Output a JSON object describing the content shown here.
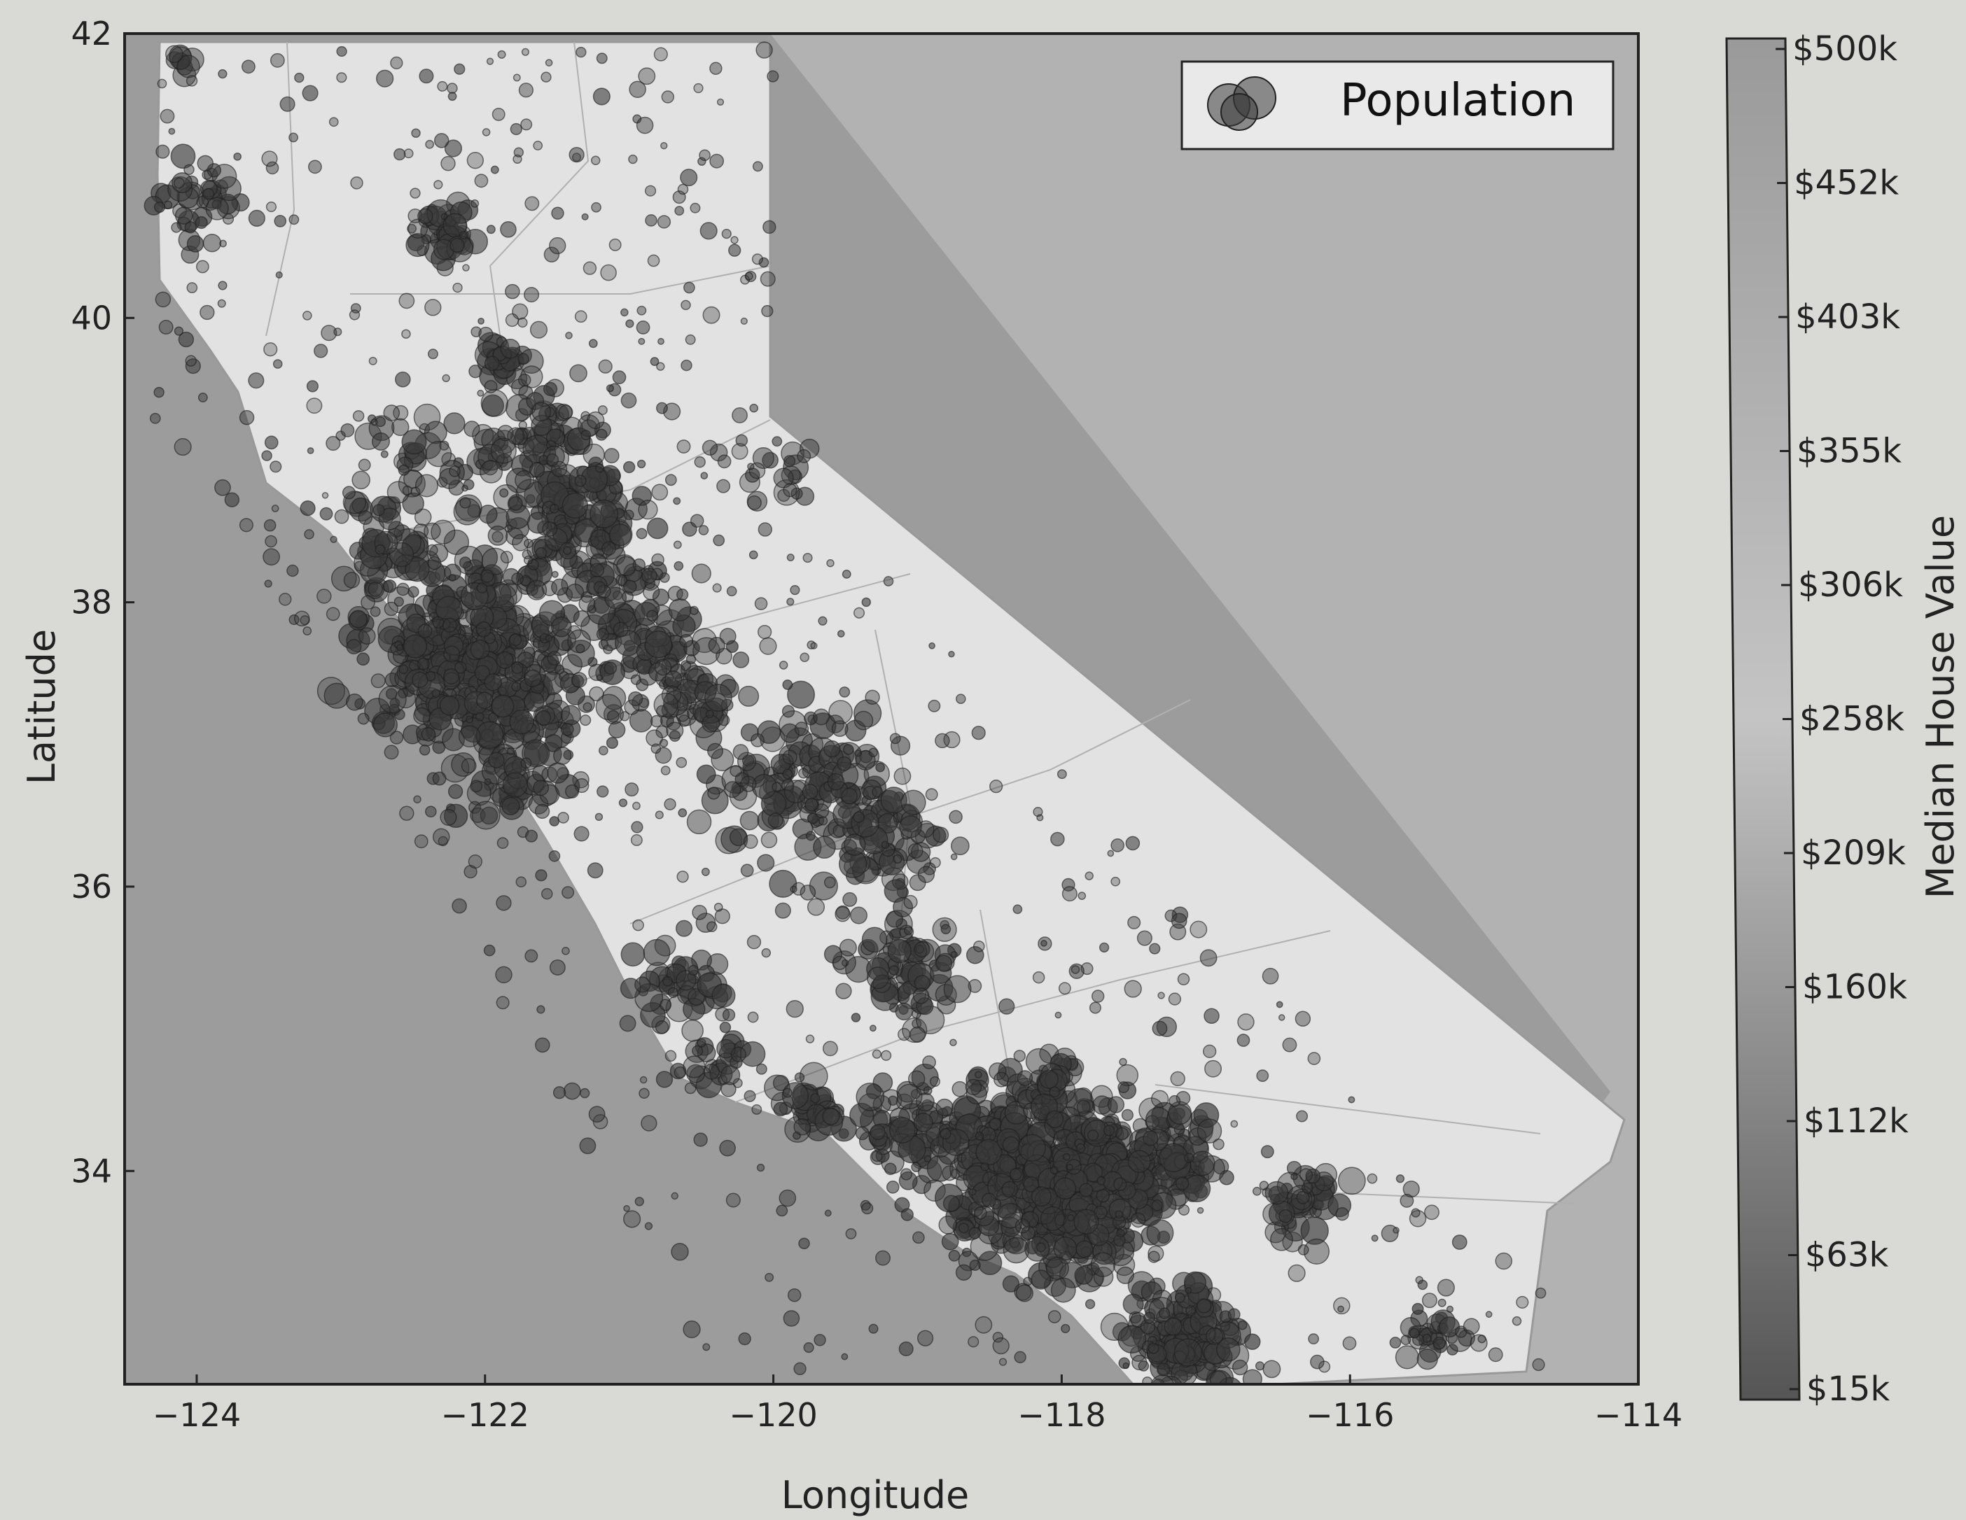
{
  "chart_data": {
    "type": "scatter",
    "xlabel": "Longitude",
    "ylabel": "Latitude",
    "xlim": [
      -124.5,
      -114
    ],
    "ylim": [
      32.5,
      42
    ],
    "x_ticks": [
      "−124",
      "−122",
      "−120",
      "−118",
      "−116",
      "−114"
    ],
    "x_tick_values": [
      -124,
      -122,
      -120,
      -118,
      -116,
      -114
    ],
    "y_ticks": [
      "34",
      "36",
      "38",
      "40",
      "42"
    ],
    "y_tick_values": [
      34,
      36,
      38,
      40,
      42
    ],
    "legend": {
      "label": "Population",
      "placement": "top-right"
    },
    "colorbar": {
      "label": "Median House Value",
      "ticks": [
        "$500k",
        "$452k",
        "$403k",
        "$355k",
        "$306k",
        "$258k",
        "$209k",
        "$160k",
        "$112k",
        "$63k",
        "$15k"
      ],
      "range": [
        15,
        500
      ]
    },
    "grid": false,
    "clusters": [
      {
        "lon": -124.1,
        "lat": 41.8,
        "spread": 0.05,
        "n": 10
      },
      {
        "lon": -124.0,
        "lat": 40.8,
        "spread": 0.15,
        "n": 40
      },
      {
        "lon": -122.3,
        "lat": 40.6,
        "spread": 0.12,
        "n": 45
      },
      {
        "lon": -121.85,
        "lat": 39.7,
        "spread": 0.1,
        "n": 30
      },
      {
        "lon": -121.55,
        "lat": 39.15,
        "spread": 0.22,
        "n": 80
      },
      {
        "lon": -121.4,
        "lat": 38.6,
        "spread": 0.25,
        "n": 160
      },
      {
        "lon": -122.2,
        "lat": 37.75,
        "spread": 0.35,
        "n": 320
      },
      {
        "lon": -121.9,
        "lat": 37.3,
        "spread": 0.3,
        "n": 200
      },
      {
        "lon": -121.8,
        "lat": 36.7,
        "spread": 0.18,
        "n": 50
      },
      {
        "lon": -122.65,
        "lat": 38.45,
        "spread": 0.15,
        "n": 45
      },
      {
        "lon": -121.0,
        "lat": 37.75,
        "spread": 0.25,
        "n": 120
      },
      {
        "lon": -120.6,
        "lat": 37.35,
        "spread": 0.2,
        "n": 60
      },
      {
        "lon": -119.75,
        "lat": 36.75,
        "spread": 0.3,
        "n": 150
      },
      {
        "lon": -119.25,
        "lat": 36.3,
        "spread": 0.2,
        "n": 70
      },
      {
        "lon": -119.05,
        "lat": 35.4,
        "spread": 0.18,
        "n": 80
      },
      {
        "lon": -120.65,
        "lat": 35.3,
        "spread": 0.15,
        "n": 45
      },
      {
        "lon": -120.4,
        "lat": 34.75,
        "spread": 0.15,
        "n": 30
      },
      {
        "lon": -119.75,
        "lat": 34.45,
        "spread": 0.1,
        "n": 40
      },
      {
        "lon": -119.0,
        "lat": 34.3,
        "spread": 0.2,
        "n": 90
      },
      {
        "lon": -118.25,
        "lat": 34.0,
        "spread": 0.3,
        "n": 420
      },
      {
        "lon": -117.75,
        "lat": 34.05,
        "spread": 0.25,
        "n": 150
      },
      {
        "lon": -117.3,
        "lat": 34.05,
        "spread": 0.2,
        "n": 120
      },
      {
        "lon": -117.85,
        "lat": 33.7,
        "spread": 0.22,
        "n": 170
      },
      {
        "lon": -117.15,
        "lat": 32.85,
        "spread": 0.2,
        "n": 180
      },
      {
        "lon": -116.35,
        "lat": 33.75,
        "spread": 0.15,
        "n": 50
      },
      {
        "lon": -115.5,
        "lat": 32.85,
        "spread": 0.1,
        "n": 30
      },
      {
        "lon": -118.1,
        "lat": 34.6,
        "spread": 0.12,
        "n": 40
      },
      {
        "lon": -122.4,
        "lat": 39.0,
        "spread": 0.25,
        "n": 50
      },
      {
        "lon": -120.0,
        "lat": 38.9,
        "spread": 0.2,
        "n": 20
      }
    ]
  },
  "colors": {
    "background": "#d9d9d6",
    "ocean": "#9c9c9c",
    "land_outside": "#b8b8b8",
    "california": "#e3e3e3",
    "marker": "#3a3a3a",
    "colorbar_top": "#a9a9a9",
    "colorbar_bottom": "#5a5a5a"
  }
}
